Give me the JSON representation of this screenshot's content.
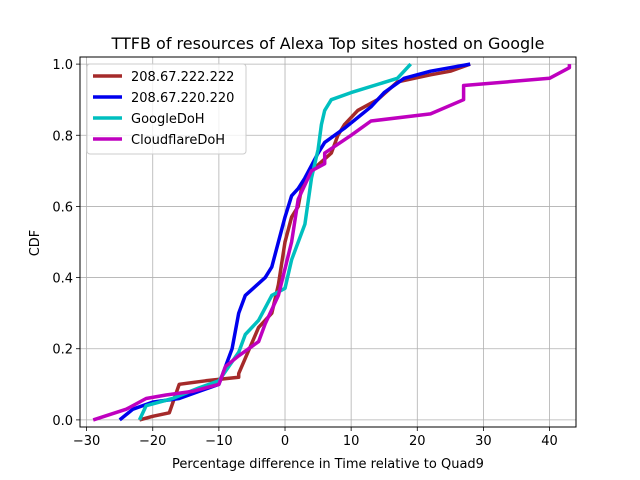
{
  "chart_data": {
    "type": "line",
    "title": "TTFB of resources of Alexa Top sites hosted on Google",
    "xlabel": "Percentage difference in Time relative to Quad9",
    "ylabel": "CDF",
    "xlim": [
      -31,
      44
    ],
    "ylim": [
      -0.02,
      1.02
    ],
    "xticks": [
      -30,
      -20,
      -10,
      0,
      10,
      20,
      30,
      40
    ],
    "xtick_labels": [
      "−30",
      "−20",
      "−10",
      "0",
      "10",
      "20",
      "30",
      "40"
    ],
    "yticks": [
      0.0,
      0.2,
      0.4,
      0.6,
      0.8,
      1.0
    ],
    "ytick_labels": [
      "0.0",
      "0.2",
      "0.4",
      "0.6",
      "0.8",
      "1.0"
    ],
    "grid": true,
    "legend_position": "upper-left",
    "series": [
      {
        "name": "208.67.222.222",
        "color": "#a52a2a",
        "points": [
          [
            -22,
            0.0
          ],
          [
            -20,
            0.01
          ],
          [
            -17.5,
            0.02
          ],
          [
            -16,
            0.1
          ],
          [
            -12,
            0.11
          ],
          [
            -7,
            0.12
          ],
          [
            -7,
            0.13
          ],
          [
            -4,
            0.26
          ],
          [
            -2,
            0.3
          ],
          [
            -1,
            0.38
          ],
          [
            0,
            0.5
          ],
          [
            1,
            0.57
          ],
          [
            2,
            0.6
          ],
          [
            2.5,
            0.65
          ],
          [
            4,
            0.7
          ],
          [
            7,
            0.75
          ],
          [
            8,
            0.8
          ],
          [
            9,
            0.83
          ],
          [
            11,
            0.87
          ],
          [
            14,
            0.9
          ],
          [
            17,
            0.95
          ],
          [
            22,
            0.97
          ],
          [
            25,
            0.98
          ],
          [
            28,
            1.0
          ]
        ]
      },
      {
        "name": "208.67.220.220",
        "color": "#0000ee",
        "points": [
          [
            -25,
            0.0
          ],
          [
            -23,
            0.03
          ],
          [
            -20,
            0.05
          ],
          [
            -16,
            0.06
          ],
          [
            -13,
            0.08
          ],
          [
            -10,
            0.1
          ],
          [
            -9,
            0.15
          ],
          [
            -8,
            0.2
          ],
          [
            -7,
            0.3
          ],
          [
            -6,
            0.35
          ],
          [
            -3,
            0.4
          ],
          [
            -2,
            0.43
          ],
          [
            -1,
            0.5
          ],
          [
            0,
            0.57
          ],
          [
            1,
            0.63
          ],
          [
            2,
            0.65
          ],
          [
            3,
            0.68
          ],
          [
            5,
            0.75
          ],
          [
            6,
            0.78
          ],
          [
            9,
            0.82
          ],
          [
            11,
            0.85
          ],
          [
            13,
            0.88
          ],
          [
            15,
            0.92
          ],
          [
            18,
            0.96
          ],
          [
            22,
            0.98
          ],
          [
            28,
            1.0
          ]
        ]
      },
      {
        "name": "GoogleDoH",
        "color": "#00bfbf",
        "points": [
          [
            -22,
            0.0
          ],
          [
            -21,
            0.04
          ],
          [
            -17,
            0.06
          ],
          [
            -13,
            0.09
          ],
          [
            -10,
            0.11
          ],
          [
            -7,
            0.19
          ],
          [
            -6,
            0.24
          ],
          [
            -4,
            0.28
          ],
          [
            -2,
            0.35
          ],
          [
            0,
            0.37
          ],
          [
            1,
            0.45
          ],
          [
            3,
            0.55
          ],
          [
            4,
            0.68
          ],
          [
            5,
            0.76
          ],
          [
            5.5,
            0.83
          ],
          [
            6,
            0.87
          ],
          [
            7,
            0.9
          ],
          [
            10,
            0.92
          ],
          [
            17,
            0.96
          ],
          [
            19,
            1.0
          ]
        ]
      },
      {
        "name": "CloudflareDoH",
        "color": "#bf00bf",
        "points": [
          [
            -29,
            0.0
          ],
          [
            -24,
            0.03
          ],
          [
            -21,
            0.06
          ],
          [
            -18,
            0.07
          ],
          [
            -14,
            0.08
          ],
          [
            -10,
            0.1
          ],
          [
            -9,
            0.15
          ],
          [
            -7,
            0.18
          ],
          [
            -4,
            0.22
          ],
          [
            -3,
            0.27
          ],
          [
            -1,
            0.35
          ],
          [
            1,
            0.5
          ],
          [
            2,
            0.62
          ],
          [
            4,
            0.7
          ],
          [
            6,
            0.72
          ],
          [
            6,
            0.75
          ],
          [
            10,
            0.8
          ],
          [
            13,
            0.84
          ],
          [
            22,
            0.86
          ],
          [
            27,
            0.9
          ],
          [
            27,
            0.94
          ],
          [
            40,
            0.96
          ],
          [
            43,
            0.99
          ],
          [
            43,
            1.0
          ]
        ]
      }
    ]
  }
}
